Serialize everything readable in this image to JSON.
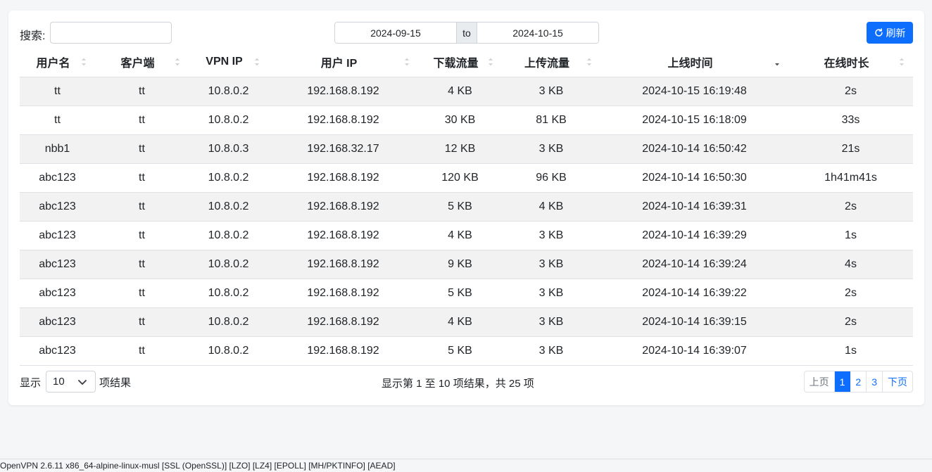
{
  "search": {
    "label": "搜索:",
    "value": ""
  },
  "date_range": {
    "from": "2024-09-15",
    "separator": "to",
    "to": "2024-10-15"
  },
  "refresh_label": "刷新",
  "table": {
    "columns": [
      "用户名",
      "客户端",
      "VPN IP",
      "用户 IP",
      "下载流量",
      "上传流量",
      "上线时间",
      "在线时长"
    ],
    "sorted_column": "上线时间",
    "sort_direction": "desc",
    "rows": [
      [
        "tt",
        "tt",
        "10.8.0.2",
        "192.168.8.192",
        "4 KB",
        "3 KB",
        "2024-10-15 16:19:48",
        "2s"
      ],
      [
        "tt",
        "tt",
        "10.8.0.2",
        "192.168.8.192",
        "30 KB",
        "81 KB",
        "2024-10-15 16:18:09",
        "33s"
      ],
      [
        "nbb1",
        "tt",
        "10.8.0.3",
        "192.168.32.17",
        "12 KB",
        "3 KB",
        "2024-10-14 16:50:42",
        "21s"
      ],
      [
        "abc123",
        "tt",
        "10.8.0.2",
        "192.168.8.192",
        "120 KB",
        "96 KB",
        "2024-10-14 16:50:30",
        "1h41m41s"
      ],
      [
        "abc123",
        "tt",
        "10.8.0.2",
        "192.168.8.192",
        "5 KB",
        "4 KB",
        "2024-10-14 16:39:31",
        "2s"
      ],
      [
        "abc123",
        "tt",
        "10.8.0.2",
        "192.168.8.192",
        "4 KB",
        "3 KB",
        "2024-10-14 16:39:29",
        "1s"
      ],
      [
        "abc123",
        "tt",
        "10.8.0.2",
        "192.168.8.192",
        "9 KB",
        "3 KB",
        "2024-10-14 16:39:24",
        "4s"
      ],
      [
        "abc123",
        "tt",
        "10.8.0.2",
        "192.168.8.192",
        "5 KB",
        "3 KB",
        "2024-10-14 16:39:22",
        "2s"
      ],
      [
        "abc123",
        "tt",
        "10.8.0.2",
        "192.168.8.192",
        "4 KB",
        "3 KB",
        "2024-10-14 16:39:15",
        "2s"
      ],
      [
        "abc123",
        "tt",
        "10.8.0.2",
        "192.168.8.192",
        "5 KB",
        "3 KB",
        "2024-10-14 16:39:07",
        "1s"
      ]
    ]
  },
  "footer": {
    "show_label": "显示",
    "page_size": "10",
    "results_label": "项结果",
    "info": "显示第 1 至 10 项结果，共 25 项"
  },
  "pagination": {
    "prev": "上页",
    "pages": [
      "1",
      "2",
      "3"
    ],
    "current": "1",
    "next": "下页"
  },
  "status_bar": "OpenVPN 2.6.11 x86_64-alpine-linux-musl [SSL (OpenSSL)] [LZO] [LZ4] [EPOLL] [MH/PKTINFO] [AEAD]",
  "colors": {
    "primary": "#0d6efd",
    "stripe": "#f2f2f2",
    "page_bg": "#f5f6f8"
  }
}
